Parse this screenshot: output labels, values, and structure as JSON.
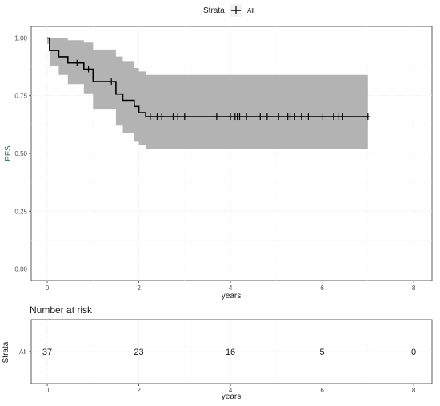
{
  "chart_data": {
    "type": "survival-step",
    "legend": {
      "title": "Strata",
      "entries": [
        "All"
      ],
      "placement": "top"
    },
    "y_label": "PFS",
    "x_label": "years",
    "x_ticks": [
      0,
      2,
      4,
      6,
      8
    ],
    "y_ticks": [
      0.0,
      0.25,
      0.5,
      0.75,
      1.0
    ],
    "y_tick_labels": [
      "0.00",
      "0.25",
      "0.50",
      "0.75",
      "1.00"
    ],
    "xlim": [
      -0.35,
      8.4
    ],
    "ylim": [
      -0.05,
      1.05
    ],
    "grid": true,
    "series": [
      {
        "name": "All",
        "color": "#000000",
        "ci_color": "#b3b3b3",
        "steps": [
          {
            "t": 0.0,
            "s": 1.0,
            "lo": 0.975,
            "hi": 1.0
          },
          {
            "t": 0.05,
            "s": 0.946,
            "lo": 0.88,
            "hi": 1.0
          },
          {
            "t": 0.25,
            "s": 0.919,
            "lo": 0.84,
            "hi": 1.0
          },
          {
            "t": 0.45,
            "s": 0.892,
            "lo": 0.8,
            "hi": 0.99
          },
          {
            "t": 0.8,
            "s": 0.865,
            "lo": 0.76,
            "hi": 0.98
          },
          {
            "t": 1.0,
            "s": 0.811,
            "lo": 0.69,
            "hi": 0.95
          },
          {
            "t": 1.5,
            "s": 0.757,
            "lo": 0.62,
            "hi": 0.92
          },
          {
            "t": 1.65,
            "s": 0.73,
            "lo": 0.59,
            "hi": 0.9
          },
          {
            "t": 1.9,
            "s": 0.703,
            "lo": 0.55,
            "hi": 0.87
          },
          {
            "t": 2.0,
            "s": 0.676,
            "lo": 0.535,
            "hi": 0.855
          },
          {
            "t": 2.15,
            "s": 0.659,
            "lo": 0.52,
            "hi": 0.84
          }
        ],
        "end_time": 7.0,
        "censor_times": [
          0.65,
          0.9,
          1.4,
          2.25,
          2.4,
          2.5,
          2.75,
          2.85,
          3.0,
          3.7,
          4.0,
          4.1,
          4.15,
          4.2,
          4.35,
          4.65,
          4.8,
          5.05,
          5.25,
          5.3,
          5.4,
          5.55,
          5.7,
          6.0,
          6.25,
          6.35,
          6.45,
          7.0
        ]
      }
    ],
    "risk_table": {
      "title": "Number at risk",
      "y_title": "Strata",
      "row_label": "All",
      "times": [
        0,
        2,
        4,
        6,
        8
      ],
      "counts": [
        37,
        23,
        16,
        5,
        0
      ],
      "x_label": "years"
    }
  }
}
